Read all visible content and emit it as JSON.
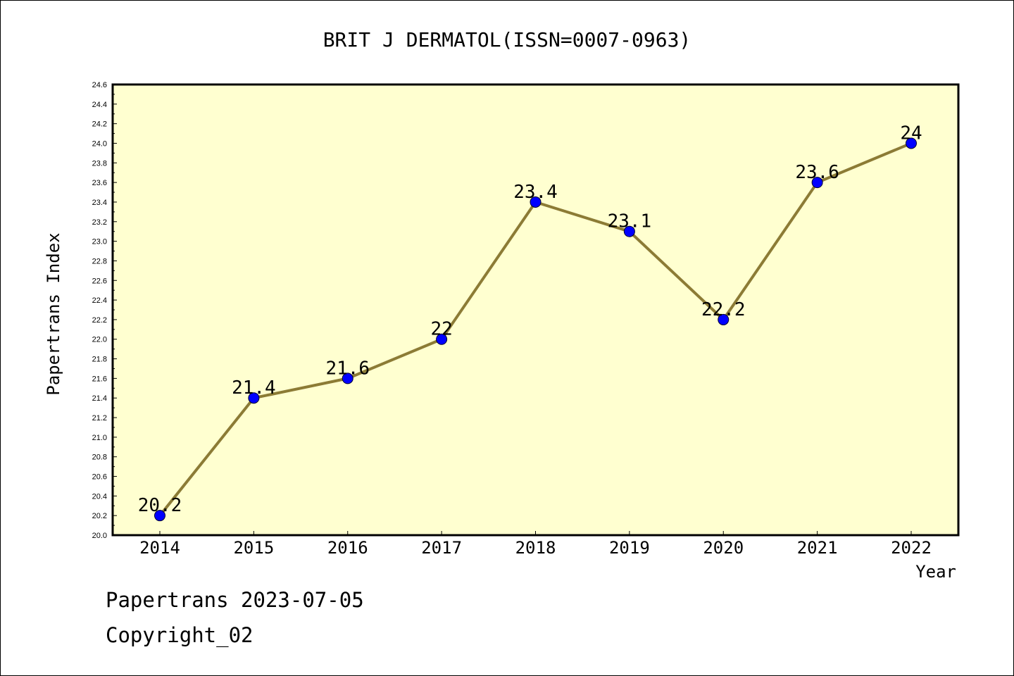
{
  "chart_data": {
    "type": "line",
    "title": "BRIT J DERMATOL(ISSN=0007-0963)",
    "xlabel": "Year",
    "ylabel": "Papertrans Index",
    "categories": [
      "2014",
      "2015",
      "2016",
      "2017",
      "2018",
      "2019",
      "2020",
      "2021",
      "2022"
    ],
    "series": [
      {
        "values": [
          20.2,
          21.4,
          21.6,
          22.0,
          23.4,
          23.1,
          22.2,
          23.6,
          24.0
        ],
        "labels": [
          "20.2",
          "21.4",
          "21.6",
          "22",
          "23.4",
          "23.1",
          "22.2",
          "23.6",
          "24"
        ],
        "line_color": "#8c7b35",
        "marker_color": "#0000ff"
      }
    ],
    "ylim": [
      20.0,
      24.6
    ],
    "yticks": [
      "20.0",
      "20.2",
      "20.4",
      "20.6",
      "20.8",
      "21.0",
      "21.2",
      "21.4",
      "21.6",
      "21.8",
      "22.0",
      "22.2",
      "22.4",
      "22.6",
      "22.8",
      "23.0",
      "23.2",
      "23.4",
      "23.6",
      "23.8",
      "24.0",
      "24.2",
      "24.4",
      "24.6"
    ],
    "plot_background": "#ffffd0",
    "grid": false
  },
  "footer": {
    "line1": "Papertrans 2023-07-05",
    "line2": "Copyright_02"
  }
}
